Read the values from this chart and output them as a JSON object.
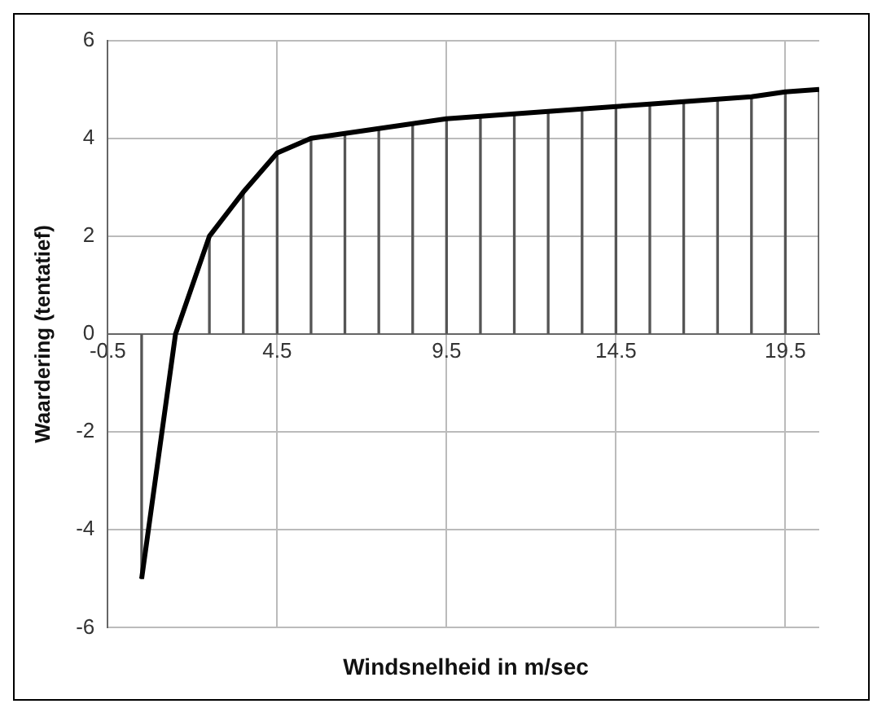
{
  "chart_data": {
    "type": "line",
    "xlabel": "Windsnelheid in m/sec",
    "ylabel": "Waardering (tentatief)",
    "x": [
      0.5,
      1.5,
      2.5,
      3.5,
      4.5,
      5.5,
      6.5,
      7.5,
      8.5,
      9.5,
      10.5,
      11.5,
      12.5,
      13.5,
      14.5,
      15.5,
      16.5,
      17.5,
      18.5,
      19.5,
      20.5
    ],
    "series": [
      {
        "type": "bar",
        "color": "#555555",
        "values": [
          -5,
          0,
          2,
          2.9,
          3.7,
          4.0,
          4.1,
          4.2,
          4.3,
          4.4,
          4.45,
          4.5,
          4.55,
          4.6,
          4.65,
          4.7,
          4.75,
          4.8,
          4.85,
          4.95,
          5.0
        ]
      },
      {
        "color": "#000000",
        "values": [
          -5,
          0,
          2,
          2.9,
          3.7,
          4.0,
          4.1,
          4.2,
          4.3,
          4.4,
          4.45,
          4.5,
          4.55,
          4.6,
          4.65,
          4.7,
          4.75,
          4.8,
          4.85,
          4.95,
          5.0
        ]
      }
    ],
    "xlim": [
      -0.5,
      20.5
    ],
    "xticks": [
      -0.5,
      4.5,
      9.5,
      14.5,
      19.5
    ],
    "ylim": [
      -6,
      6
    ],
    "yticks": [
      -6,
      -4,
      -2,
      0,
      2,
      4,
      6
    ],
    "grid": true,
    "legend": false,
    "marker": "none",
    "line_style": "solid"
  }
}
